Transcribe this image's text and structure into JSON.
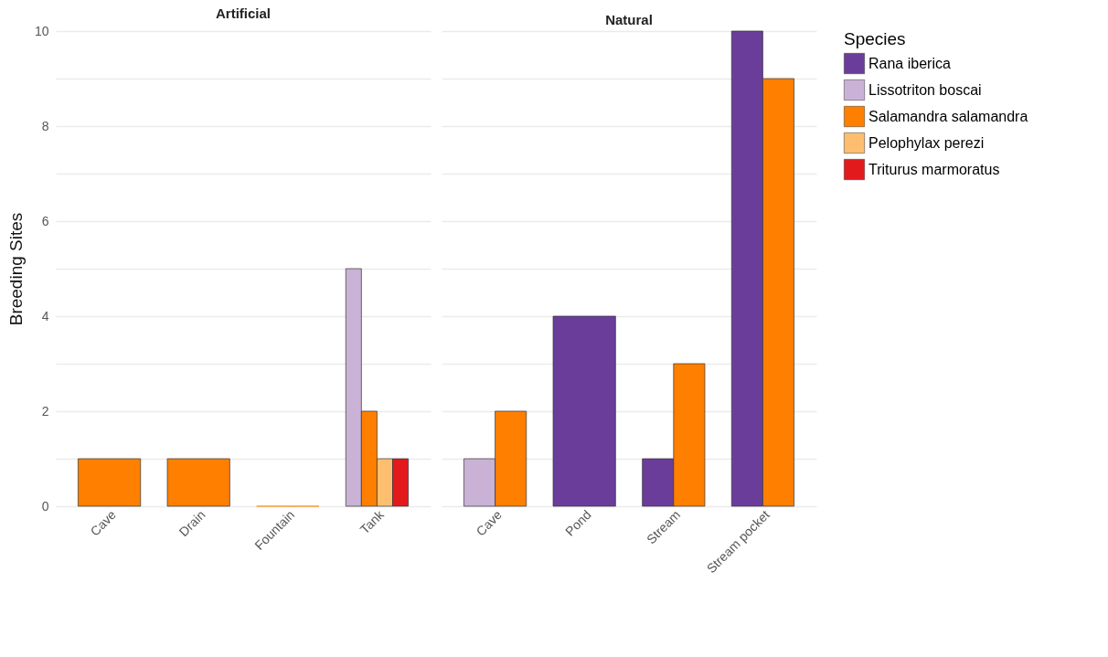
{
  "chart_data": [
    {
      "type": "bar",
      "title": "Artificial",
      "ylabel": "Breeding Sites",
      "categories": [
        "Cave",
        "Drain",
        "Fountain",
        "Tank"
      ],
      "series": [
        {
          "color": "#cab2d6",
          "values": [
            null,
            null,
            null,
            5
          ]
        },
        {
          "color": "#ff7f00",
          "values": [
            1,
            1,
            0,
            2
          ]
        },
        {
          "color": "#fdbf6f",
          "values": [
            null,
            null,
            null,
            1
          ]
        },
        {
          "color": "#e31a1c",
          "values": [
            null,
            null,
            null,
            1
          ]
        }
      ],
      "ylim": [
        0,
        10
      ],
      "yticks": [
        0,
        {
          "value": 1,
          "label": null
        },
        2,
        {
          "value": 3,
          "label": null
        },
        4,
        {
          "value": 5,
          "label": null
        },
        6,
        {
          "value": 7,
          "label": null
        },
        8,
        {
          "value": 9,
          "label": null
        },
        10
      ],
      "grid": "y"
    },
    {
      "type": "bar",
      "title": "Natural",
      "categories": [
        "Cave",
        "Pond",
        "Stream",
        "Stream pocket"
      ],
      "series": [
        {
          "name": "Rana iberica",
          "color": "#6a3d9a",
          "values": [
            null,
            4,
            1,
            10
          ]
        },
        {
          "name": "Lissotriton boscai",
          "color": "#cab2d6",
          "values": [
            1,
            null,
            null,
            null
          ]
        },
        {
          "name": "Salamandra salamandra",
          "color": "#ff7f00",
          "values": [
            2,
            null,
            3,
            9
          ]
        },
        {
          "name": "Pelophylax perezi",
          "color": "#fdbf6f",
          "values": [
            null,
            null,
            null,
            null
          ]
        },
        {
          "name": "Triturus marmoratus",
          "color": "#e31a1c",
          "values": [
            null,
            null,
            null,
            null
          ]
        }
      ],
      "ylim": [
        0,
        10
      ],
      "yticks": [
        0,
        {
          "value": 1,
          "label": null
        },
        2,
        {
          "value": 3,
          "label": null
        },
        4,
        {
          "value": 5,
          "label": null
        },
        6,
        {
          "value": 7,
          "label": null
        },
        8,
        {
          "value": 9,
          "label": null
        },
        10
      ],
      "grid": "y",
      "tick_labels": "x",
      "legend": "right",
      "legend_title": "Species"
    }
  ]
}
